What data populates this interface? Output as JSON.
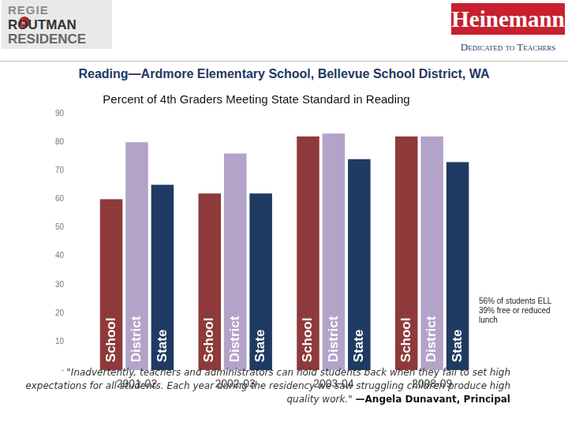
{
  "header": {
    "logo_left": [
      "REGIE",
      "in",
      "ROUTMAN",
      "RESIDENCE"
    ],
    "logo_right": "Heinemann",
    "logo_right_tagline": "Dedicated to Teachers"
  },
  "slide_title": "Reading—Ardmore Elementary School, Bellevue School District, WA",
  "chart_data": {
    "type": "bar",
    "title": "Percent of 4th Graders Meeting State Standard in Reading",
    "categories": [
      "2001-02",
      "2002-03",
      "2003-04",
      "2008-09"
    ],
    "series": [
      {
        "name": "School",
        "color": "#8e3a3a",
        "values": [
          60,
          62,
          82,
          82
        ]
      },
      {
        "name": "District",
        "color": "#b3a3c8",
        "values": [
          80,
          76,
          83,
          82
        ]
      },
      {
        "name": "State",
        "color": "#1f3a63",
        "values": [
          65,
          62,
          74,
          73
        ]
      }
    ],
    "ylim": [
      0,
      90
    ],
    "yticks": [
      {
        "value": 0,
        "label": "-"
      },
      10,
      20,
      30,
      40,
      50,
      60,
      70,
      80,
      90
    ],
    "grid": false,
    "annotations": [
      "56% of students ELL",
      "39% free or reduced lunch"
    ]
  },
  "quote": {
    "text": "\"Inadvertently, teachers and administrators can hold students back when they fail to set high expectations for all students. Each year during the residency we saw struggling children produce high quality work.\"",
    "attribution": "—Angela Dunavant, Principal"
  }
}
